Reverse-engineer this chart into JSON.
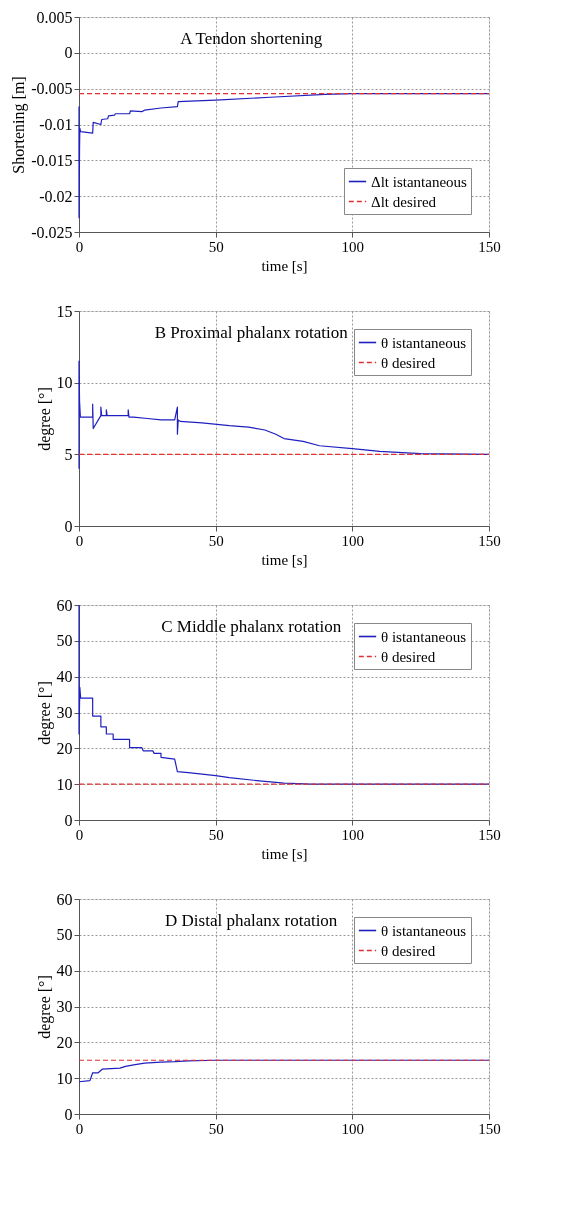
{
  "chart_data": [
    {
      "type": "line",
      "title": "A  Tendon shortening",
      "xlabel": "time [s]",
      "ylabel": "Shortening [m]",
      "xlim": [
        0,
        150
      ],
      "xticks": [
        0,
        50,
        100,
        150
      ],
      "ylim": [
        -0.025,
        0.005
      ],
      "yticks": [
        -0.025,
        -0.02,
        -0.015,
        -0.01,
        -0.005,
        0,
        0.005
      ],
      "grid": true,
      "legend": "bottom right",
      "series": [
        {
          "name": "Δlt istantaneous",
          "color": "#1f1fbf",
          "line_style": "solid",
          "x": [
            0,
            0,
            0.2,
            0.3,
            0.6,
            5,
            5.2,
            8,
            8.3,
            10.5,
            10.8,
            13,
            13.3,
            18.5,
            18.8,
            23,
            24,
            30,
            36,
            36.3,
            50,
            70,
            90,
            100,
            150
          ],
          "values": [
            -0.0075,
            -0.023,
            -0.0135,
            -0.0105,
            -0.011,
            -0.0112,
            -0.0097,
            -0.01,
            -0.0093,
            -0.0092,
            -0.0088,
            -0.0087,
            -0.0085,
            -0.0085,
            -0.0081,
            -0.0082,
            -0.008,
            -0.0077,
            -0.0075,
            -0.0068,
            -0.0066,
            -0.0062,
            -0.0058,
            -0.0057,
            -0.0057
          ]
        },
        {
          "name": "Δlt desired",
          "color": "#e03030",
          "line_style": "dashed",
          "x": [
            0,
            150
          ],
          "values": [
            -0.0057,
            -0.0057
          ]
        }
      ]
    },
    {
      "type": "line",
      "title": "B  Proximal phalanx rotation",
      "xlabel": "time [s]",
      "ylabel": "degree [°]",
      "xlim": [
        0,
        150
      ],
      "xticks": [
        0,
        50,
        100,
        150
      ],
      "ylim": [
        0,
        15
      ],
      "yticks": [
        0,
        5,
        10,
        15
      ],
      "grid": true,
      "legend": "top right",
      "series": [
        {
          "name": "θ istantaneous",
          "color": "#1f1fbf",
          "line_style": "solid",
          "x": [
            0,
            0,
            0.2,
            0.5,
            5,
            5,
            5.2,
            8,
            8,
            8.3,
            10,
            10,
            10.3,
            18,
            18,
            18.3,
            20,
            25,
            30,
            35,
            36,
            36,
            36.3,
            37,
            45,
            55,
            62,
            68,
            72,
            75,
            82,
            88,
            100,
            110,
            125,
            150
          ],
          "values": [
            4,
            11.5,
            8.7,
            7.6,
            7.6,
            8.5,
            6.8,
            7.7,
            8.3,
            7.7,
            7.7,
            8.1,
            7.7,
            7.7,
            8.1,
            7.6,
            7.6,
            7.5,
            7.4,
            7.4,
            8.3,
            6.4,
            7.4,
            7.3,
            7.2,
            7.0,
            6.9,
            6.7,
            6.4,
            6.1,
            5.9,
            5.6,
            5.4,
            5.2,
            5.05,
            5.0
          ]
        },
        {
          "name": "θ desired",
          "color": "#e03030",
          "line_style": "dashed",
          "x": [
            0,
            150
          ],
          "values": [
            5,
            5
          ]
        }
      ]
    },
    {
      "type": "line",
      "title": "C  Middle phalanx rotation",
      "xlabel": "time [s]",
      "ylabel": "degree [°]",
      "xlim": [
        0,
        150
      ],
      "xticks": [
        0,
        50,
        100,
        150
      ],
      "ylim": [
        0,
        60
      ],
      "yticks": [
        0,
        10,
        20,
        30,
        40,
        50,
        60
      ],
      "grid": true,
      "legend": "top right",
      "series": [
        {
          "name": "θ istantaneous",
          "color": "#1f1fbf",
          "line_style": "solid",
          "x": [
            0,
            0,
            0.3,
            0.6,
            5,
            5,
            8,
            8,
            10,
            10,
            12.5,
            12.5,
            18.5,
            18.5,
            23,
            23.5,
            27,
            27.5,
            30,
            30,
            35,
            36,
            40,
            50,
            55,
            65,
            75,
            85,
            150
          ],
          "values": [
            60,
            24,
            37,
            34,
            34,
            29,
            29,
            26,
            26,
            24,
            24,
            22.5,
            22.5,
            20.2,
            20.2,
            19.3,
            19.3,
            18.6,
            18.6,
            17.5,
            17,
            13.5,
            13.2,
            12.4,
            11.8,
            11,
            10.3,
            10,
            10
          ]
        },
        {
          "name": "θ desired",
          "color": "#e03030",
          "line_style": "dashed",
          "x": [
            0,
            150
          ],
          "values": [
            10,
            10
          ]
        }
      ]
    },
    {
      "type": "line",
      "title": "D  Distal phalanx rotation",
      "ylabel": "degree [°]",
      "xlim": [
        0,
        150
      ],
      "xticks": [
        0,
        50,
        100,
        150
      ],
      "ylim": [
        0,
        60
      ],
      "yticks": [
        0,
        10,
        20,
        30,
        40,
        50,
        60
      ],
      "grid": true,
      "legend": "top right",
      "series": [
        {
          "name": "θ istantaneous",
          "color": "#1f1fbf",
          "line_style": "solid",
          "x": [
            0,
            4,
            5,
            7,
            8.5,
            15,
            17,
            20,
            24,
            30,
            35,
            40,
            50,
            150
          ],
          "values": [
            9,
            9.3,
            11.5,
            11.5,
            12.5,
            12.8,
            13.3,
            13.7,
            14.2,
            14.5,
            14.6,
            14.8,
            15,
            15
          ]
        },
        {
          "name": "θ desired",
          "color": "#e03030",
          "line_style": "dashed",
          "x": [
            0,
            150
          ],
          "values": [
            15,
            15
          ]
        }
      ]
    }
  ]
}
